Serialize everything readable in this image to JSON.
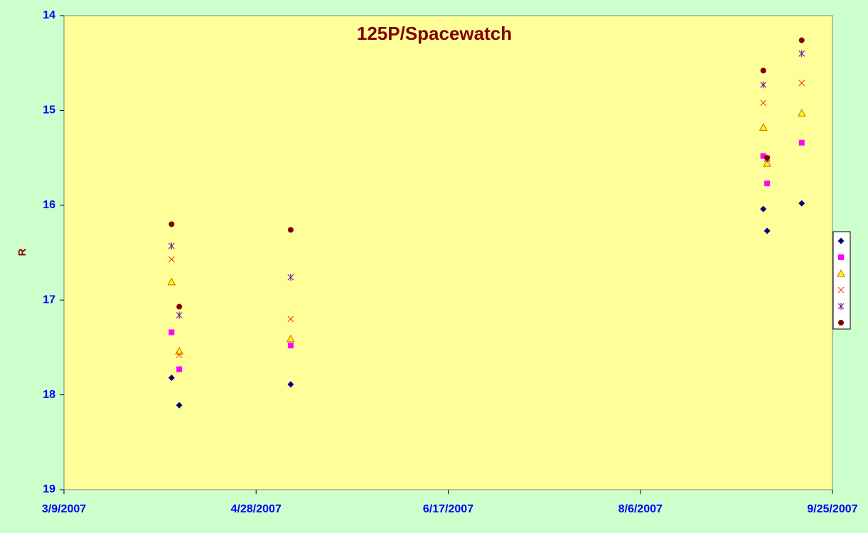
{
  "chart_data": {
    "type": "scatter",
    "title": "125P/Spacewatch",
    "y_label": "R",
    "xlim": [
      "3/9/2007",
      "9/25/2007"
    ],
    "xticks": [
      "3/9/2007",
      "4/28/2007",
      "6/17/2007",
      "8/6/2007",
      "9/25/2007"
    ],
    "ylim": [
      14,
      19
    ],
    "yticks": [
      14,
      15,
      16,
      17,
      18,
      19
    ],
    "y_inverted": true,
    "legend": "right",
    "series": [
      {
        "color": "#000080",
        "marker": "diamond",
        "x": [
          "4/6/2007",
          "4/8/2007",
          "5/7/2007",
          "9/7/2007",
          "9/8/2007",
          "9/17/2007"
        ],
        "values": [
          17.82,
          18.11,
          17.89,
          16.04,
          16.27,
          15.98
        ]
      },
      {
        "color": "#ff00ff",
        "marker": "square",
        "x": [
          "4/6/2007",
          "4/8/2007",
          "5/7/2007",
          "9/7/2007",
          "9/8/2007",
          "9/17/2007"
        ],
        "values": [
          17.34,
          17.73,
          17.48,
          15.48,
          15.77,
          15.34
        ]
      },
      {
        "color": "#cc6600",
        "marker": "triangle",
        "x": [
          "4/6/2007",
          "4/8/2007",
          "5/7/2007",
          "9/7/2007",
          "9/8/2007",
          "9/17/2007"
        ],
        "values": [
          16.81,
          17.54,
          17.41,
          15.18,
          15.56,
          15.03
        ]
      },
      {
        "color": "#ff3300",
        "marker": "cross",
        "x": [
          "4/6/2007",
          "4/8/2007",
          "5/7/2007",
          "9/7/2007",
          "9/8/2007",
          "9/17/2007"
        ],
        "values": [
          16.57,
          17.58,
          17.2,
          14.92,
          15.51,
          14.71
        ]
      },
      {
        "color": "#660099",
        "marker": "star",
        "x": [
          "4/6/2007",
          "4/8/2007",
          "5/7/2007",
          "9/7/2007",
          "9/8/2007",
          "9/17/2007"
        ],
        "values": [
          16.43,
          17.16,
          16.76,
          14.73,
          15.51,
          14.4
        ]
      },
      {
        "color": "#800000",
        "marker": "circle",
        "x": [
          "4/6/2007",
          "4/8/2007",
          "5/7/2007",
          "9/7/2007",
          "9/8/2007",
          "9/17/2007"
        ],
        "values": [
          16.2,
          17.07,
          16.26,
          14.58,
          15.5,
          14.26
        ]
      }
    ]
  }
}
